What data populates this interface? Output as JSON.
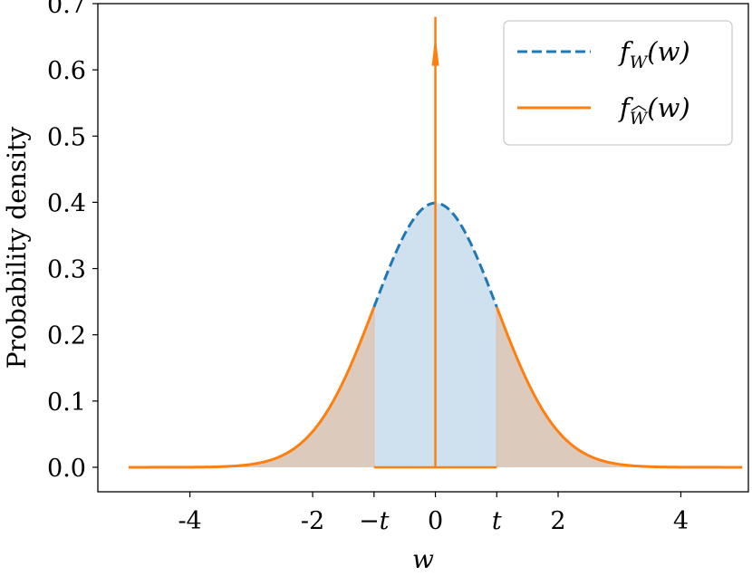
{
  "chart_data": {
    "type": "line",
    "xlabel": "w",
    "ylabel": "Probability density",
    "xlim": [
      -5.5,
      5.1
    ],
    "ylim": [
      -0.037,
      0.7
    ],
    "threshold_t": 1.0,
    "spike": {
      "x": 0,
      "y": 0.68
    },
    "x_ticks": [
      {
        "value": -4,
        "label": "-4"
      },
      {
        "value": -2,
        "label": "-2"
      },
      {
        "value": -1,
        "label": "−t"
      },
      {
        "value": 0,
        "label": "0"
      },
      {
        "value": 1,
        "label": "t"
      },
      {
        "value": 2,
        "label": "2"
      },
      {
        "value": 4,
        "label": "4"
      }
    ],
    "y_ticks": [
      {
        "value": 0.0,
        "label": "0.0"
      },
      {
        "value": 0.1,
        "label": "0.1"
      },
      {
        "value": 0.2,
        "label": "0.2"
      },
      {
        "value": 0.3,
        "label": "0.3"
      },
      {
        "value": 0.4,
        "label": "0.4"
      },
      {
        "value": 0.5,
        "label": "0.5"
      },
      {
        "value": 0.6,
        "label": "0.6"
      },
      {
        "value": 0.7,
        "label": "0.7"
      }
    ],
    "series": [
      {
        "name": "f_W(w)",
        "style": "dashed",
        "color": "#1f77b4",
        "x": [
          -5,
          -4.5,
          -4,
          -3.5,
          -3,
          -2.5,
          -2,
          -1.5,
          -1,
          -0.5,
          0,
          0.5,
          1,
          1.5,
          2,
          2.5,
          3,
          3.5,
          4,
          4.5,
          5
        ],
        "y": [
          1.5e-06,
          1.6e-05,
          0.000134,
          0.000873,
          0.00443,
          0.0175,
          0.054,
          0.1295,
          0.242,
          0.352,
          0.399,
          0.352,
          0.242,
          0.1295,
          0.054,
          0.0175,
          0.00443,
          0.000873,
          0.000134,
          1.6e-05,
          1.5e-06
        ]
      },
      {
        "name": "f_Ŵ(w)",
        "style": "solid",
        "color": "#ff7f0e",
        "x": [
          -5,
          -4.5,
          -4,
          -3.5,
          -3,
          -2.5,
          -2,
          -1.5,
          -1,
          0,
          1,
          1.5,
          2,
          2.5,
          3,
          3.5,
          4,
          4.5,
          5
        ],
        "y": [
          1.5e-06,
          1.6e-05,
          0.000134,
          0.000873,
          0.00443,
          0.0175,
          0.054,
          0.1295,
          0.242,
          0.68,
          0.242,
          0.1295,
          0.054,
          0.0175,
          0.00443,
          0.000873,
          0.000134,
          1.6e-05,
          1.5e-06
        ]
      }
    ],
    "legend": {
      "position": "top-right",
      "entries": [
        {
          "base": "f",
          "sub": "W",
          "arg": "(w)",
          "color": "#1f77b4",
          "style": "dashed"
        },
        {
          "base": "f",
          "sub": "W",
          "sub_hat": true,
          "arg": "(w)",
          "color": "#ff7f0e",
          "style": "solid"
        }
      ]
    },
    "fill_colors": {
      "center": "#cfe0ef",
      "tails": "#dccbbd"
    }
  }
}
